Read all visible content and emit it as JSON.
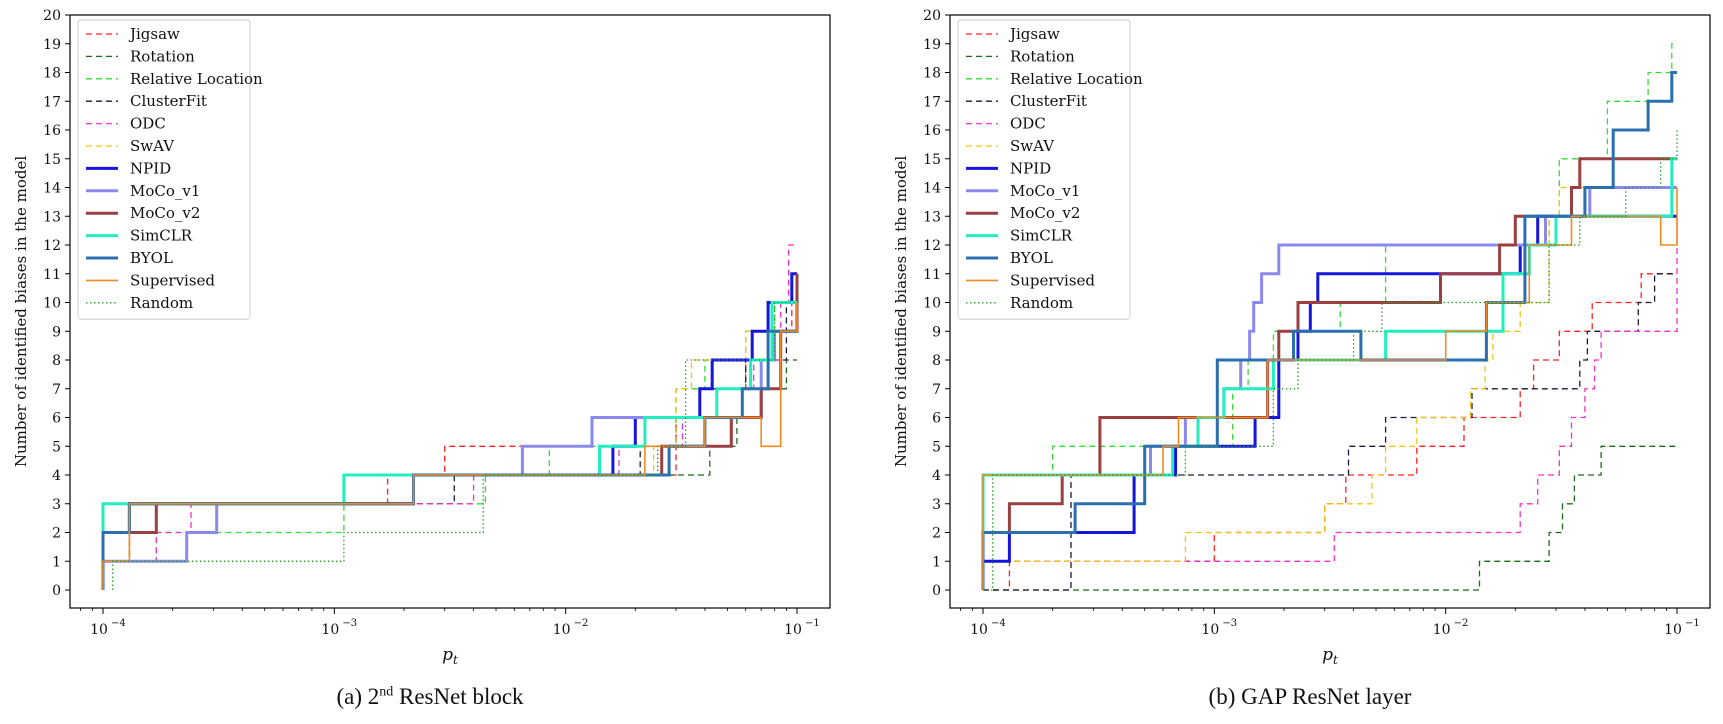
{
  "legend_styles": [
    {
      "name": "Jigsaw",
      "color": "#ff2020",
      "dash": "6,4",
      "width": 1.3
    },
    {
      "name": "Rotation",
      "color": "#1a6b1a",
      "dash": "6,4",
      "width": 1.3
    },
    {
      "name": "Relative Location",
      "color": "#33dd33",
      "dash": "6,4",
      "width": 1.3
    },
    {
      "name": "ClusterFit",
      "color": "#1a1a3a",
      "dash": "6,4",
      "width": 1.3
    },
    {
      "name": "ODC",
      "color": "#ee33cc",
      "dash": "6,4",
      "width": 1.3
    },
    {
      "name": "SwAV",
      "color": "#f2c418",
      "dash": "6,4",
      "width": 1.3
    },
    {
      "name": "NPID",
      "color": "#1515dd",
      "dash": "",
      "width": 3
    },
    {
      "name": "MoCo_v1",
      "color": "#8a8aee",
      "dash": "",
      "width": 3
    },
    {
      "name": "MoCo_v2",
      "color": "#9b4040",
      "dash": "",
      "width": 3
    },
    {
      "name": "SimCLR",
      "color": "#22eec0",
      "dash": "",
      "width": 3
    },
    {
      "name": "BYOL",
      "color": "#2a70b0",
      "dash": "",
      "width": 3
    },
    {
      "name": "Supervised",
      "color": "#f28a22",
      "dash": "",
      "width": 1.6
    },
    {
      "name": "Random",
      "color": "#2a9a2a",
      "dash": "1.5,2.5",
      "width": 1.3
    }
  ],
  "chart_data": [
    {
      "type": "line",
      "step": true,
      "x_scale": "log",
      "xlim": [
        0.0001,
        0.1
      ],
      "ylim": [
        0,
        20
      ],
      "xlabel": "p_t",
      "ylabel": "Number of identified biases in the model",
      "xticks": [
        0.0001,
        0.001,
        0.01,
        0.1
      ],
      "xtick_labels": [
        {
          "base": "10",
          "exp": "−4"
        },
        {
          "base": "10",
          "exp": "−3"
        },
        {
          "base": "10",
          "exp": "−2"
        },
        {
          "base": "10",
          "exp": "−1"
        }
      ],
      "yticks": [
        0,
        1,
        2,
        3,
        4,
        5,
        6,
        7,
        8,
        9,
        10,
        11,
        12,
        13,
        14,
        15,
        16,
        17,
        18,
        19,
        20
      ],
      "legend_position": "upper-left",
      "caption_prefix": "(a) 2",
      "caption_sup": "nd",
      "caption_suffix": " ResNet block",
      "series": [
        {
          "name": "Jigsaw",
          "x": [
            0.0001,
            0.00013,
            0.0017,
            0.003,
            0.016,
            0.03,
            0.045,
            0.06,
            0.08,
            0.095,
            0.1
          ],
          "y": [
            1,
            3,
            4,
            5,
            4,
            6,
            7,
            8,
            9,
            11,
            11
          ]
        },
        {
          "name": "Rotation",
          "x": [
            0.0001,
            0.00013,
            0.0022,
            0.033,
            0.042,
            0.055,
            0.07,
            0.09,
            0.1
          ],
          "y": [
            1,
            3,
            4,
            4,
            5,
            6,
            7,
            8,
            8
          ]
        },
        {
          "name": "Relative Location",
          "x": [
            0.0001,
            0.00017,
            0.0011,
            0.0045,
            0.0085,
            0.022,
            0.03,
            0.04,
            0.06,
            0.08,
            0.1
          ],
          "y": [
            1,
            2,
            3,
            4,
            5,
            6,
            7,
            8,
            9,
            10,
            10
          ]
        },
        {
          "name": "ClusterFit",
          "x": [
            0.0001,
            0.00013,
            0.0022,
            0.0033,
            0.021,
            0.03,
            0.038,
            0.06,
            0.09,
            0.1
          ],
          "y": [
            1,
            3,
            3,
            4,
            5,
            6,
            7,
            8,
            10,
            10
          ]
        },
        {
          "name": "ODC",
          "x": [
            0.0001,
            0.00017,
            0.00024,
            0.004,
            0.017,
            0.032,
            0.045,
            0.065,
            0.085,
            0.092,
            0.1
          ],
          "y": [
            1,
            2,
            3,
            4,
            5,
            6,
            7,
            8,
            10,
            12,
            12
          ]
        },
        {
          "name": "SwAV",
          "x": [
            0.0001,
            0.00013,
            0.0022,
            0.0055,
            0.024,
            0.03,
            0.035,
            0.06,
            0.075,
            0.095,
            0.1
          ],
          "y": [
            1,
            3,
            4,
            4,
            5,
            7,
            8,
            9,
            10,
            11,
            11
          ]
        },
        {
          "name": "NPID",
          "x": [
            0.0001,
            0.00013,
            0.0022,
            0.016,
            0.02,
            0.038,
            0.043,
            0.064,
            0.075,
            0.095,
            0.1
          ],
          "y": [
            2,
            3,
            4,
            5,
            6,
            7,
            8,
            9,
            10,
            11,
            11
          ]
        },
        {
          "name": "MoCo_v1",
          "x": [
            0.0001,
            0.00023,
            0.00031,
            0.0022,
            0.0065,
            0.013,
            0.028,
            0.07,
            0.08,
            0.1
          ],
          "y": [
            1,
            2,
            3,
            4,
            5,
            6,
            6,
            8,
            9,
            9
          ]
        },
        {
          "name": "MoCo_v2",
          "x": [
            0.0001,
            0.00017,
            0.0022,
            0.026,
            0.052,
            0.07,
            0.085,
            0.1
          ],
          "y": [
            2,
            3,
            4,
            5,
            6,
            7,
            9,
            11
          ]
        },
        {
          "name": "SimCLR",
          "x": [
            0.0001,
            0.0011,
            0.014,
            0.022,
            0.032,
            0.045,
            0.063,
            0.078,
            0.1
          ],
          "y": [
            3,
            4,
            5,
            6,
            6,
            7,
            8,
            10,
            10
          ]
        },
        {
          "name": "BYOL",
          "x": [
            0.0001,
            0.00013,
            0.0022,
            0.028,
            0.04,
            0.058,
            0.075,
            0.1
          ],
          "y": [
            2,
            3,
            4,
            5,
            6,
            7,
            9,
            9
          ]
        },
        {
          "name": "Supervised",
          "x": [
            0.0001,
            0.00013,
            0.0022,
            0.022,
            0.04,
            0.07,
            0.085,
            0.1
          ],
          "y": [
            1,
            3,
            4,
            5,
            6,
            5,
            9,
            10
          ]
        },
        {
          "name": "Random",
          "x": [
            0.00011,
            0.0011,
            0.0044,
            0.0051,
            0.025,
            0.033,
            0.045,
            0.065,
            0.08,
            0.09,
            0.1
          ],
          "y": [
            1,
            2,
            4,
            4,
            5,
            8,
            8,
            8,
            10,
            10,
            10
          ]
        }
      ]
    },
    {
      "type": "line",
      "step": true,
      "x_scale": "log",
      "xlim": [
        0.0001,
        0.1
      ],
      "ylim": [
        0,
        20
      ],
      "xlabel": "p_t",
      "ylabel": "Number of identified biases in the model",
      "xticks": [
        0.0001,
        0.001,
        0.01,
        0.1
      ],
      "xtick_labels": [
        {
          "base": "10",
          "exp": "−4"
        },
        {
          "base": "10",
          "exp": "−3"
        },
        {
          "base": "10",
          "exp": "−2"
        },
        {
          "base": "10",
          "exp": "−1"
        }
      ],
      "yticks": [
        0,
        1,
        2,
        3,
        4,
        5,
        6,
        7,
        8,
        9,
        10,
        11,
        12,
        13,
        14,
        15,
        16,
        17,
        18,
        19,
        20
      ],
      "legend_position": "upper-left",
      "caption_prefix": "(b) GAP ResNet layer",
      "caption_sup": "",
      "caption_suffix": "",
      "series": [
        {
          "name": "Jigsaw",
          "x": [
            0.0001,
            0.00013,
            0.001,
            0.003,
            0.0037,
            0.0075,
            0.012,
            0.021,
            0.024,
            0.031,
            0.043,
            0.07,
            0.095,
            0.1
          ],
          "y": [
            0,
            1,
            2,
            3,
            4,
            5,
            6,
            7,
            8,
            9,
            10,
            11,
            11,
            11
          ]
        },
        {
          "name": "Rotation",
          "x": [
            0.0001,
            0.014,
            0.028,
            0.032,
            0.036,
            0.047,
            0.051,
            0.1
          ],
          "y": [
            0,
            1,
            2,
            3,
            4,
            5,
            5,
            5
          ]
        },
        {
          "name": "Relative Location",
          "x": [
            0.0001,
            0.0002,
            0.00045,
            0.0012,
            0.0014,
            0.0018,
            0.0035,
            0.0055,
            0.023,
            0.028,
            0.031,
            0.036,
            0.05,
            0.075,
            0.095,
            0.1
          ],
          "y": [
            4,
            5,
            5,
            7,
            8,
            9,
            10,
            12,
            12,
            13,
            15,
            15,
            17,
            18,
            19,
            19
          ]
        },
        {
          "name": "ClusterFit",
          "x": [
            0.0001,
            0.00024,
            0.0038,
            0.0055,
            0.013,
            0.038,
            0.041,
            0.052,
            0.068,
            0.08,
            0.098,
            0.1
          ],
          "y": [
            0,
            4,
            5,
            6,
            7,
            8,
            9,
            9,
            10,
            11,
            11,
            11
          ]
        },
        {
          "name": "ODC",
          "x": [
            0.0001,
            0.00075,
            0.0033,
            0.0055,
            0.021,
            0.025,
            0.031,
            0.035,
            0.04,
            0.044,
            0.047,
            0.1
          ],
          "y": [
            1,
            1,
            2,
            2,
            3,
            4,
            5,
            6,
            7,
            8,
            9,
            13
          ]
        },
        {
          "name": "SwAV",
          "x": [
            0.0001,
            0.00075,
            0.003,
            0.004,
            0.0048,
            0.0055,
            0.0075,
            0.0128,
            0.0148,
            0.016,
            0.021,
            0.028,
            0.031,
            0.04,
            0.1
          ],
          "y": [
            1,
            2,
            3,
            3,
            4,
            5,
            6,
            7,
            8,
            9,
            10,
            13,
            14,
            14,
            14
          ]
        },
        {
          "name": "NPID",
          "x": [
            0.0001,
            0.00013,
            0.00045,
            0.00068,
            0.0015,
            0.0019,
            0.0023,
            0.0026,
            0.0028,
            0.021,
            0.025,
            0.038,
            0.1
          ],
          "y": [
            1,
            2,
            4,
            5,
            6,
            8,
            9,
            10,
            11,
            12,
            13,
            13,
            13
          ]
        },
        {
          "name": "MoCo_v1",
          "x": [
            0.0001,
            0.00053,
            0.00075,
            0.0011,
            0.0013,
            0.00142,
            0.00148,
            0.0016,
            0.0019,
            0.024,
            0.027,
            0.042,
            0.075,
            0.1
          ],
          "y": [
            4,
            5,
            6,
            7,
            8,
            9,
            10,
            11,
            12,
            12,
            13,
            14,
            14,
            14
          ]
        },
        {
          "name": "MoCo_v2",
          "x": [
            0.0001,
            0.00013,
            0.00022,
            0.00032,
            0.0017,
            0.0019,
            0.0023,
            0.0095,
            0.0171,
            0.02,
            0.035,
            0.038,
            0.1
          ],
          "y": [
            2,
            3,
            4,
            6,
            8,
            9,
            10,
            11,
            12,
            13,
            14,
            15,
            15
          ]
        },
        {
          "name": "SimCLR",
          "x": [
            0.0001,
            0.00066,
            0.00085,
            0.0011,
            0.0018,
            0.0055,
            0.0177,
            0.023,
            0.03,
            0.095,
            0.1
          ],
          "y": [
            4,
            5,
            6,
            7,
            8,
            9,
            11,
            12,
            13,
            15,
            15
          ]
        },
        {
          "name": "BYOL",
          "x": [
            0.0001,
            0.00013,
            0.00025,
            0.0005,
            0.00103,
            0.0016,
            0.0022,
            0.0043,
            0.015,
            0.022,
            0.032,
            0.04,
            0.053,
            0.075,
            0.095,
            0.1
          ],
          "y": [
            2,
            2,
            3,
            5,
            8,
            8,
            9,
            8,
            10,
            13,
            13,
            14,
            16,
            17,
            18,
            18
          ]
        },
        {
          "name": "Supervised",
          "x": [
            0.0001,
            0.0002,
            0.0006,
            0.0007,
            0.0017,
            0.0045,
            0.01,
            0.015,
            0.023,
            0.035,
            0.085,
            0.1
          ],
          "y": [
            4,
            4,
            5,
            6,
            8,
            8,
            9,
            10,
            12,
            13,
            12,
            14
          ]
        },
        {
          "name": "Random",
          "x": [
            0.0001,
            0.00011,
            0.00075,
            0.001,
            0.0012,
            0.0018,
            0.0023,
            0.004,
            0.0053,
            0.028,
            0.038,
            0.06,
            0.085,
            0.1
          ],
          "y": [
            0,
            4,
            5,
            5,
            5,
            7,
            8,
            9,
            10,
            12,
            13,
            14,
            15,
            16
          ]
        }
      ]
    }
  ]
}
